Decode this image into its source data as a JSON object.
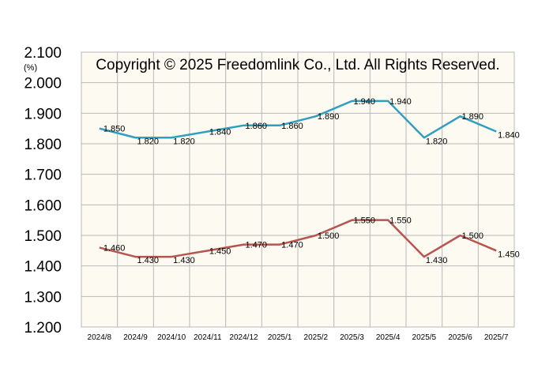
{
  "chart_data": {
    "type": "line",
    "title": "",
    "xlabel": "",
    "ylabel": "",
    "unit_label": "(%)",
    "watermark": "Copyright © 2025 Freedomlink Co., Ltd. All Rights Reserved.",
    "ylim": [
      1.2,
      2.1
    ],
    "yticks": [
      "1.200",
      "1.300",
      "1.400",
      "1.500",
      "1.600",
      "1.700",
      "1.800",
      "1.900",
      "2.000",
      "2.100"
    ],
    "categories": [
      "2024/8",
      "2024/9",
      "2024/10",
      "2024/11",
      "2024/12",
      "2025/1",
      "2025/2",
      "2025/3",
      "2025/4",
      "2025/5",
      "2025/6",
      "2025/7"
    ],
    "grid": true,
    "legend": "none",
    "series": [
      {
        "color": "#2f9fbf",
        "values": [
          1.85,
          1.82,
          1.82,
          1.84,
          1.86,
          1.86,
          1.89,
          1.94,
          1.94,
          1.82,
          1.89,
          1.84
        ],
        "labels": [
          "1.850",
          "1.820",
          "1.820",
          "1.840",
          "1.860",
          "1.860",
          "1.890",
          "1.940",
          "1.940",
          "1.820",
          "1.890",
          "1.840"
        ]
      },
      {
        "color": "#b85450",
        "values": [
          1.46,
          1.43,
          1.43,
          1.45,
          1.47,
          1.47,
          1.5,
          1.55,
          1.55,
          1.43,
          1.5,
          1.45
        ],
        "labels": [
          "1.460",
          "1.430",
          "1.430",
          "1.450",
          "1.470",
          "1.470",
          "1.500",
          "1.550",
          "1.550",
          "1.430",
          "1.500",
          "1.450"
        ]
      }
    ],
    "plot_background": "#fdfaf2",
    "grid_color": "#b8b8b8"
  }
}
